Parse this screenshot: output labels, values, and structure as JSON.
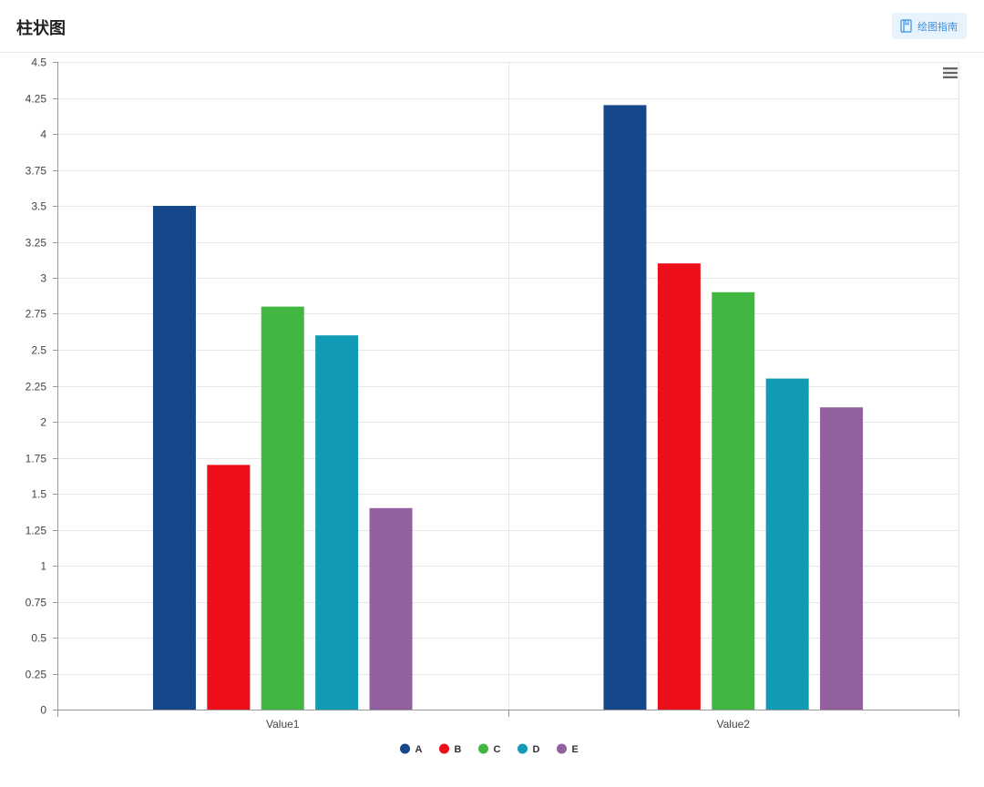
{
  "header": {
    "title": "柱状图",
    "guide_button_label": "绘图指南",
    "guide_icon": "book-icon"
  },
  "toolbar": {
    "menu_icon": "hamburger-menu-icon"
  },
  "chart_data": {
    "type": "bar",
    "title": "",
    "xlabel": "",
    "ylabel": "",
    "categories": [
      "Value1",
      "Value2"
    ],
    "ylim": [
      0,
      4.5
    ],
    "yticks": [
      0,
      0.25,
      0.5,
      0.75,
      1,
      1.25,
      1.5,
      1.75,
      2,
      2.25,
      2.5,
      2.75,
      3,
      3.25,
      3.5,
      3.75,
      4,
      4.25,
      4.5
    ],
    "ytick_labels": [
      "0",
      "0.25",
      "0.5",
      "0.75",
      "1",
      "1.25",
      "1.5",
      "1.75",
      "2",
      "2.25",
      "2.5",
      "2.75",
      "3",
      "3.25",
      "3.5",
      "3.75",
      "4",
      "4.25",
      "4.5"
    ],
    "grid": true,
    "legend_position": "bottom-center",
    "series": [
      {
        "name": "A",
        "color": "#15478a",
        "values": [
          3.5,
          4.2
        ]
      },
      {
        "name": "B",
        "color": "#ec0e18",
        "values": [
          1.7,
          3.1
        ]
      },
      {
        "name": "C",
        "color": "#41b641",
        "values": [
          2.8,
          2.9
        ]
      },
      {
        "name": "D",
        "color": "#129bb4",
        "values": [
          2.6,
          2.3
        ]
      },
      {
        "name": "E",
        "color": "#925f9f",
        "values": [
          1.4,
          2.1
        ]
      }
    ]
  }
}
